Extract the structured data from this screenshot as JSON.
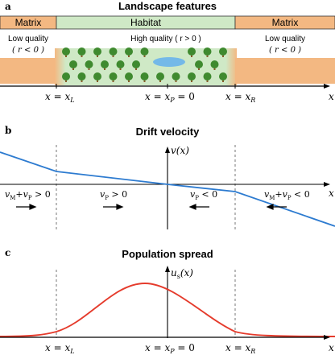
{
  "panel_a": {
    "letter": "a",
    "title": "Landscape features",
    "matrix_label": "Matrix",
    "habitat_label": "Habitat",
    "matrix_left_quality": "Low quality",
    "matrix_left_cond": "( r < 0 )",
    "habitat_quality": "High quality ( r > 0 )",
    "matrix_right_quality": "Low quality",
    "matrix_right_cond": "( r < 0 )",
    "x_left": "x = x",
    "x_left_sub": "L",
    "x_peak": "x = x",
    "x_peak_sub": "P",
    "x_peak_tail": " = 0",
    "x_right": "x = x",
    "x_right_sub": "R",
    "axis_var": "x",
    "colors": {
      "matrix": "#f3b882",
      "habitat": "#cfe9c6",
      "tree_canopy": "#3f8a2f",
      "tree_trunk": "#8a5a2b",
      "pond": "#74b9e8"
    }
  },
  "panel_b": {
    "letter": "b",
    "title": "Drift velocity",
    "y_label": "v(x)",
    "axis_var": "x",
    "annotations": [
      {
        "text": "v_M + v_P > 0",
        "arrow": "right"
      },
      {
        "text": "v_P > 0",
        "arrow": "right"
      },
      {
        "text": "v_P < 0",
        "arrow": "left"
      },
      {
        "text": "v_M + v_P < 0",
        "arrow": "left"
      }
    ],
    "line_color": "#2d7bd0"
  },
  "panel_c": {
    "letter": "c",
    "title": "Population spread",
    "y_label": "u_s(x)",
    "x_left": "x = x_L",
    "x_peak": "x = x_P = 0",
    "x_right": "x = x_R",
    "axis_var": "x",
    "curve_color": "#e53b2c"
  },
  "chart_data": [
    {
      "type": "line",
      "title": "Drift velocity",
      "xlabel": "x",
      "ylabel": "v(x)",
      "series": [
        {
          "x": [
            -1.0,
            -0.67,
            0.0,
            0.42,
            1.0
          ],
          "values": [
            0.45,
            0.2,
            0.0,
            -0.1,
            -0.55
          ]
        }
      ]
    },
    {
      "type": "line",
      "title": "Population spread",
      "xlabel": "x",
      "ylabel": "u_s(x)",
      "series": [
        {
          "x": [
            -1.0,
            -0.67,
            -0.3,
            0.0,
            0.2,
            0.42,
            1.0
          ],
          "values": [
            0.0,
            0.05,
            0.68,
            0.9,
            0.82,
            0.05,
            0.0
          ]
        }
      ]
    }
  ]
}
